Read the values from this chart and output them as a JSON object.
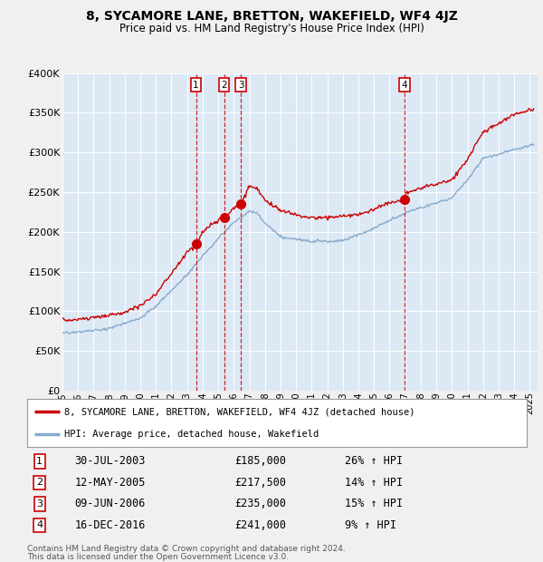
{
  "title": "8, SYCAMORE LANE, BRETTON, WAKEFIELD, WF4 4JZ",
  "subtitle": "Price paid vs. HM Land Registry's House Price Index (HPI)",
  "fig_bg": "#f0f0f0",
  "plot_bg_color": "#dce9f5",
  "ylim": [
    0,
    400000
  ],
  "yticks": [
    0,
    50000,
    100000,
    150000,
    200000,
    250000,
    300000,
    350000,
    400000
  ],
  "ytick_labels": [
    "£0",
    "£50K",
    "£100K",
    "£150K",
    "£200K",
    "£250K",
    "£300K",
    "£350K",
    "£400K"
  ],
  "sales": [
    {
      "num": 1,
      "date": "30-JUL-2003",
      "price": "185,000",
      "pct": "26%",
      "dir": "↑"
    },
    {
      "num": 2,
      "date": "12-MAY-2005",
      "price": "217,500",
      "pct": "14%",
      "dir": "↑"
    },
    {
      "num": 3,
      "date": "09-JUN-2006",
      "price": "235,000",
      "pct": "15%",
      "dir": "↑"
    },
    {
      "num": 4,
      "date": "16-DEC-2016",
      "price": "241,000",
      "pct": "9%",
      "dir": "↑"
    }
  ],
  "sale_years": [
    2003.57,
    2005.37,
    2006.45,
    2016.96
  ],
  "sale_prices": [
    185000,
    217500,
    235000,
    241000
  ],
  "legend_line1": "8, SYCAMORE LANE, BRETTON, WAKEFIELD, WF4 4JZ (detached house)",
  "legend_line2": "HPI: Average price, detached house, Wakefield",
  "footer1": "Contains HM Land Registry data © Crown copyright and database right 2024.",
  "footer2": "This data is licensed under the Open Government Licence v3.0.",
  "line_color_red": "#cc0000",
  "line_color_blue": "#88aacc",
  "vline_color": "#cc0000",
  "grid_color": "#ffffff"
}
